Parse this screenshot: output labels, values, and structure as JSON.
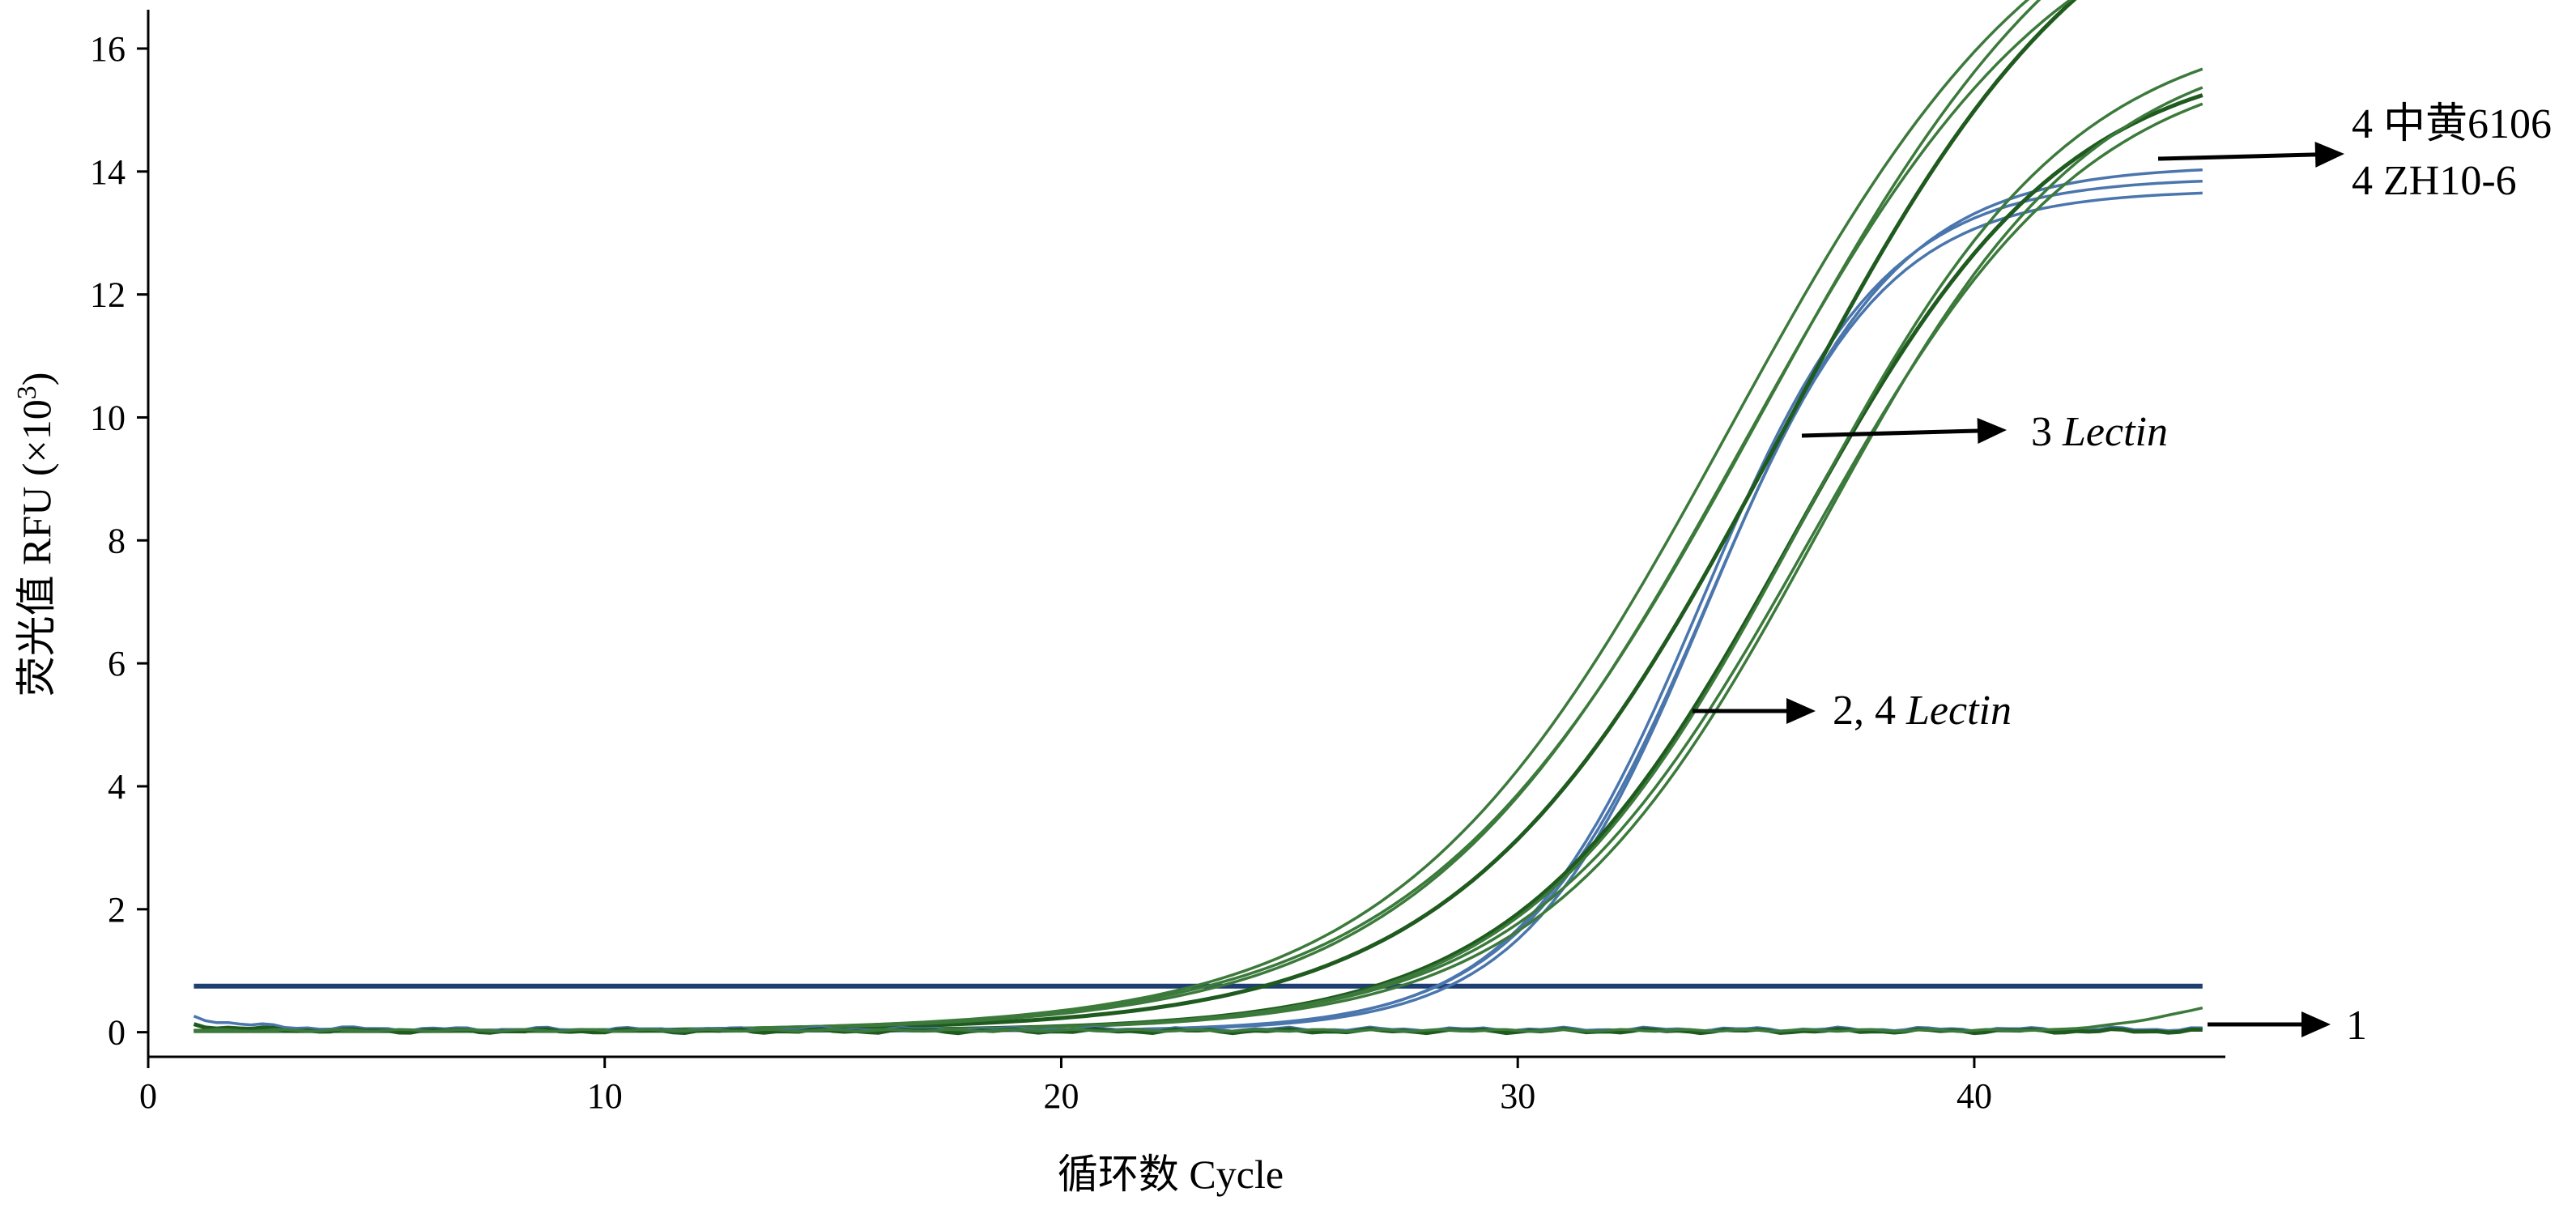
{
  "chart_data": {
    "type": "line",
    "xlabel": "循环数 Cycle",
    "ylabel": {
      "prefix": "荧光值 RFU (×10",
      "sup": "3",
      "suffix": ")"
    },
    "xlim": [
      0,
      45.5
    ],
    "ylim": [
      -0.4,
      16.5
    ],
    "x_ticks": [
      0,
      10,
      20,
      30,
      40
    ],
    "y_ticks": [
      0,
      2,
      4,
      6,
      8,
      10,
      12,
      14,
      16
    ],
    "threshold": {
      "value": 0.75,
      "color": "#1f3f73"
    },
    "colors": {
      "blue": "#4a76ad",
      "green": "#3c7a3c",
      "dark_green": "#1f5a1f"
    },
    "series": [
      {
        "color": "blue",
        "curve": "sigmoid",
        "params": {
          "bottom": 0.02,
          "top": 13.9,
          "mid": 34.0,
          "slope": 2.0
        }
      },
      {
        "color": "blue",
        "curve": "sigmoid",
        "params": {
          "bottom": 0.02,
          "top": 14.1,
          "mid": 34.2,
          "slope": 2.05
        }
      },
      {
        "color": "blue",
        "curve": "sigmoid",
        "params": {
          "bottom": 0.02,
          "top": 13.7,
          "mid": 34.1,
          "slope": 1.95
        }
      },
      {
        "color": "dark_green",
        "curve": "sigmoid",
        "params": {
          "bottom": 0.02,
          "top": 19.5,
          "mid": 35.8,
          "slope": 3.5
        }
      },
      {
        "color": "green",
        "curve": "sigmoid",
        "params": {
          "bottom": 0.02,
          "top": 20.0,
          "mid": 35.3,
          "slope": 3.7
        }
      },
      {
        "color": "green",
        "curve": "sigmoid",
        "params": {
          "bottom": 0.02,
          "top": 19.0,
          "mid": 34.9,
          "slope": 3.55
        }
      },
      {
        "color": "green",
        "curve": "sigmoid",
        "params": {
          "bottom": 0.02,
          "top": 19.5,
          "mid": 34.6,
          "slope": 3.6
        }
      },
      {
        "color": "dark_green",
        "curve": "sigmoid",
        "params": {
          "bottom": 0.02,
          "top": 16.0,
          "mid": 36.0,
          "slope": 3.0
        }
      },
      {
        "color": "green",
        "curve": "sigmoid",
        "params": {
          "bottom": 0.02,
          "top": 16.5,
          "mid": 36.2,
          "slope": 3.0
        }
      },
      {
        "color": "green",
        "curve": "sigmoid",
        "params": {
          "bottom": 0.02,
          "top": 16.3,
          "mid": 36.6,
          "slope": 3.0
        }
      },
      {
        "color": "green",
        "curve": "sigmoid",
        "params": {
          "bottom": 0.02,
          "top": 16.0,
          "mid": 36.4,
          "slope": 3.05
        }
      },
      {
        "color": "blue",
        "curve": "baseline",
        "params": {
          "level": 0.05,
          "start": 0.25
        }
      },
      {
        "color": "dark_green",
        "curve": "baseline",
        "params": {
          "level": 0.02,
          "start": 0.12
        }
      },
      {
        "color": "green",
        "curve": "late_rise",
        "params": {
          "level": 0.03,
          "end": 0.4,
          "from": 41
        }
      }
    ],
    "annotations": [
      {
        "text": "4 中黄6106",
        "italic": false
      },
      {
        "text": "4 ZH10-6",
        "italic": false
      },
      {
        "text_parts": [
          "3 ",
          "Lectin"
        ]
      },
      {
        "text_parts": [
          "2, 4 ",
          "Lectin"
        ]
      },
      {
        "text": "1",
        "italic": false
      }
    ]
  }
}
